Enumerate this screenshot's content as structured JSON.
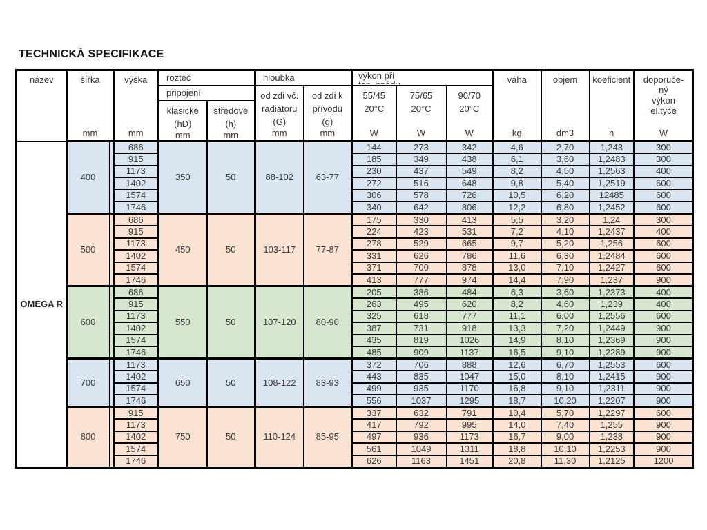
{
  "page_title": "TECHNICKÁ SPECIFIKACE",
  "table": {
    "product_name": "OMEGA R",
    "colors": {
      "blue": "#d9e5f1",
      "pink": "#fbe3d4",
      "green": "#d7e6cf"
    },
    "header": {
      "nazev": "název",
      "sirka": "šířka",
      "vyska": "výška",
      "roztec": "rozteč",
      "pripojeni": "připojení",
      "klasicke": "klasické\n(hD)",
      "stredove": "středové\n(h)",
      "hloubka": "hloubka",
      "od_zdi_vc": "od zdi  vč.\nradiátoru\n(G)",
      "od_zdi_k": "od zdi  k\npřívodu\n(g)",
      "vykon": "výkon při\ntep. spádu",
      "t5545": "55/45\n20°C",
      "t7565": "75/65\n20°C",
      "t9070": "90/70\n20°C",
      "vaha": "váha",
      "objem": "objem",
      "koeficient": "koeficient",
      "doporuceny": "doporuče-\nný\nvýkon\nel.tyče",
      "units": {
        "mm": "mm",
        "W": "W",
        "kg": "kg",
        "dm3": "dm3",
        "n": "n"
      }
    },
    "groups": [
      {
        "width": "400",
        "color": "blue",
        "klasicke": "350",
        "stredove": "50",
        "G": "88-102",
        "g": "63-77",
        "rows": [
          [
            "686",
            "144",
            "273",
            "342",
            "4,6",
            "2,70",
            "1,243",
            "300"
          ],
          [
            "915",
            "185",
            "349",
            "438",
            "6,1",
            "3,60",
            "1,2483",
            "300"
          ],
          [
            "1173",
            "230",
            "437",
            "549",
            "8,2",
            "4,50",
            "1,2563",
            "400"
          ],
          [
            "1402",
            "272",
            "516",
            "648",
            "9,8",
            "5,40",
            "1,2519",
            "600"
          ],
          [
            "1574",
            "306",
            "578",
            "726",
            "10,5",
            "6,20",
            "12485",
            "600"
          ],
          [
            "1746",
            "340",
            "642",
            "806",
            "12,2",
            "6,80",
            "1,2452",
            "600"
          ]
        ]
      },
      {
        "width": "500",
        "color": "pink",
        "klasicke": "450",
        "stredove": "50",
        "G": "103-117",
        "g": "77-87",
        "rows": [
          [
            "686",
            "175",
            "330",
            "413",
            "5,5",
            "3,20",
            "1,24",
            "300"
          ],
          [
            "915",
            "224",
            "423",
            "531",
            "7,2",
            "4,10",
            "1,2437",
            "400"
          ],
          [
            "1173",
            "278",
            "529",
            "665",
            "9,7",
            "5,20",
            "1,256",
            "600"
          ],
          [
            "1402",
            "331",
            "626",
            "786",
            "11,6",
            "6,30",
            "1,2484",
            "600"
          ],
          [
            "1574",
            "371",
            "700",
            "878",
            "13,0",
            "7,10",
            "1,2427",
            "600"
          ],
          [
            "1746",
            "413",
            "777",
            "974",
            "14,4",
            "7,90",
            "1,237",
            "900"
          ]
        ]
      },
      {
        "width": "600",
        "color": "green",
        "klasicke": "550",
        "stredove": "50",
        "G": "107-120",
        "g": "80-90",
        "rows": [
          [
            "686",
            "205",
            "386",
            "484",
            "6,3",
            "3,60",
            "1,2373",
            "400"
          ],
          [
            "915",
            "263",
            "495",
            "620",
            "8,2",
            "4,60",
            "1,239",
            "400"
          ],
          [
            "1173",
            "325",
            "618",
            "777",
            "11,1",
            "6,00",
            "1,2556",
            "600"
          ],
          [
            "1402",
            "387",
            "731",
            "918",
            "13,3",
            "7,20",
            "1,2449",
            "900"
          ],
          [
            "1574",
            "435",
            "819",
            "1026",
            "14,9",
            "8,10",
            "1,2369",
            "900"
          ],
          [
            "1746",
            "485",
            "909",
            "1137",
            "16,5",
            "9,10",
            "1,2289",
            "900"
          ]
        ]
      },
      {
        "width": "700",
        "color": "blue",
        "klasicke": "650",
        "stredove": "50",
        "G": "108-122",
        "g": "83-93",
        "rows": [
          [
            "1173",
            "372",
            "706",
            "888",
            "12,6",
            "6,70",
            "1,2553",
            "600"
          ],
          [
            "1402",
            "443",
            "835",
            "1047",
            "15,0",
            "8,10",
            "1,2415",
            "900"
          ],
          [
            "1574",
            "499",
            "935",
            "1170",
            "16,8",
            "9,10",
            "1,2311",
            "900"
          ],
          [
            "1746",
            "556",
            "1037",
            "1295",
            "18,7",
            "10,20",
            "1,2207",
            "900"
          ]
        ]
      },
      {
        "width": "800",
        "color": "pink",
        "klasicke": "750",
        "stredove": "50",
        "G": "110-124",
        "g": "85-95",
        "rows": [
          [
            "915",
            "337",
            "632",
            "791",
            "10,4",
            "5,70",
            "1,2297",
            "600"
          ],
          [
            "1173",
            "417",
            "792",
            "995",
            "14,0",
            "7,40",
            "1,255",
            "900"
          ],
          [
            "1402",
            "497",
            "936",
            "1173",
            "16,7",
            "9,00",
            "1,238",
            "900"
          ],
          [
            "1574",
            "561",
            "1049",
            "1311",
            "18,8",
            "10,10",
            "1,2253",
            "900"
          ],
          [
            "1746",
            "626",
            "1163",
            "1451",
            "20,8",
            "11,30",
            "1,2125",
            "1200"
          ]
        ]
      }
    ]
  }
}
